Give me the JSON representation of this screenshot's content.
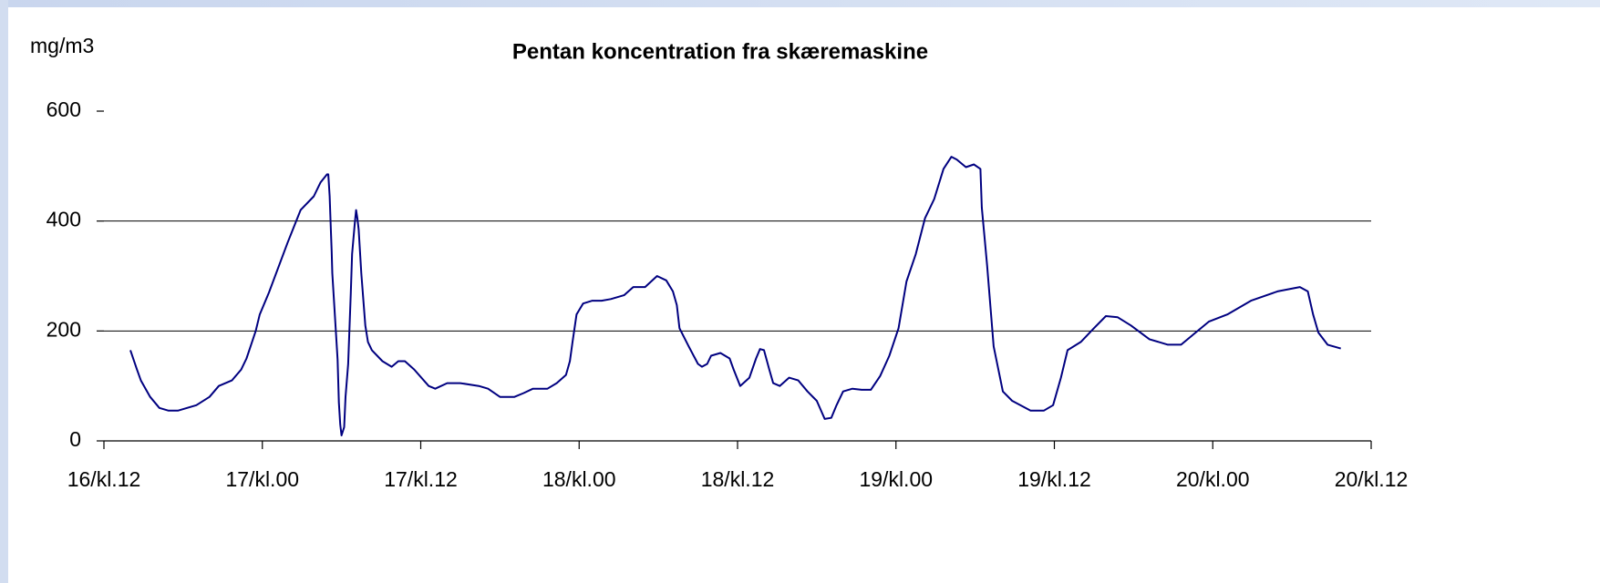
{
  "chart_data": {
    "type": "line",
    "title": "Pentan koncentration fra skæremaskine",
    "y_label": "mg/m3",
    "xlim": [
      0,
      96
    ],
    "xticks": [
      {
        "value": 0,
        "label": "16/kl.12"
      },
      {
        "value": 12,
        "label": "17/kl.00"
      },
      {
        "value": 24,
        "label": "17/kl.12"
      },
      {
        "value": 36,
        "label": "18/kl.00"
      },
      {
        "value": 48,
        "label": "18/kl.12"
      },
      {
        "value": 60,
        "label": "19/kl.00"
      },
      {
        "value": 72,
        "label": "19/kl.12"
      },
      {
        "value": 84,
        "label": "20/kl.00"
      },
      {
        "value": 96,
        "label": "20/kl.12"
      }
    ],
    "ylim": [
      0,
      600
    ],
    "yticks": [
      0,
      200,
      400,
      600
    ],
    "grid": true,
    "series": [
      {
        "color": "#000080",
        "x": [
          2.0,
          2.5,
          2.8,
          3.5,
          4.2,
          4.9,
          5.6,
          7.0,
          8.0,
          8.7,
          9.7,
          10.4,
          10.8,
          11.5,
          11.8,
          12.5,
          13.9,
          14.9,
          15.9,
          16.4,
          16.9,
          17.0,
          17.1,
          17.2,
          17.25,
          17.3,
          17.7,
          17.8,
          17.9,
          18.0,
          18.2,
          18.3,
          18.5,
          18.7,
          18.8,
          19.0,
          19.1,
          19.2,
          19.3,
          19.5,
          19.8,
          20.0,
          20.3,
          21.1,
          21.8,
          22.3,
          22.8,
          23.5,
          24.6,
          25.1,
          26.0,
          27.0,
          28.4,
          29.1,
          30.0,
          31.1,
          31.8,
          32.5,
          33.6,
          34.3,
          35.0,
          35.3,
          35.5,
          35.8,
          36.3,
          37.0,
          37.7,
          38.4,
          39.4,
          40.1,
          41.0,
          41.9,
          42.6,
          43.1,
          43.4,
          43.6,
          44.3,
          45.0,
          45.3,
          45.7,
          46.0,
          46.7,
          47.4,
          47.7,
          48.2,
          48.9,
          49.4,
          49.7,
          50.0,
          50.4,
          50.7,
          51.2,
          51.9,
          52.6,
          53.3,
          54.0,
          54.6,
          55.1,
          55.5,
          56.0,
          56.7,
          57.4,
          58.1,
          58.8,
          59.5,
          60.2,
          60.8,
          61.5,
          62.2,
          62.9,
          63.6,
          64.2,
          64.6,
          65.3,
          65.9,
          66.4,
          66.5,
          66.9,
          67.4,
          68.1,
          68.8,
          70.2,
          71.2,
          71.9,
          72.5,
          73.0,
          74.0,
          75.0,
          75.9,
          76.8,
          77.8,
          79.2,
          80.6,
          81.6,
          82.7,
          83.7,
          85.1,
          86.9,
          88.9,
          90.6,
          91.2,
          91.6,
          92.0,
          92.7,
          93.7
        ],
        "values": [
          165,
          130,
          110,
          80,
          60,
          55,
          55,
          65,
          80,
          100,
          110,
          130,
          150,
          200,
          230,
          270,
          360,
          420,
          445,
          470,
          485,
          485,
          445,
          380,
          345,
          305,
          148,
          70,
          30,
          10,
          25,
          80,
          140,
          270,
          340,
          395,
          420,
          405,
          385,
          305,
          210,
          180,
          165,
          145,
          135,
          145,
          145,
          130,
          100,
          95,
          105,
          105,
          100,
          95,
          80,
          80,
          87,
          95,
          95,
          105,
          120,
          145,
          180,
          230,
          250,
          255,
          255,
          258,
          265,
          280,
          280,
          300,
          292,
          272,
          247,
          205,
          172,
          140,
          135,
          140,
          155,
          160,
          150,
          130,
          100,
          115,
          150,
          167,
          165,
          130,
          105,
          100,
          115,
          110,
          90,
          73,
          40,
          42,
          65,
          90,
          95,
          93,
          93,
          118,
          155,
          205,
          290,
          340,
          405,
          440,
          495,
          517,
          512,
          498,
          503,
          495,
          425,
          320,
          172,
          90,
          73,
          55,
          55,
          65,
          115,
          165,
          180,
          205,
          227,
          225,
          210,
          185,
          175,
          175,
          197,
          217,
          230,
          255,
          272,
          280,
          272,
          230,
          197,
          175,
          168
        ]
      }
    ]
  }
}
